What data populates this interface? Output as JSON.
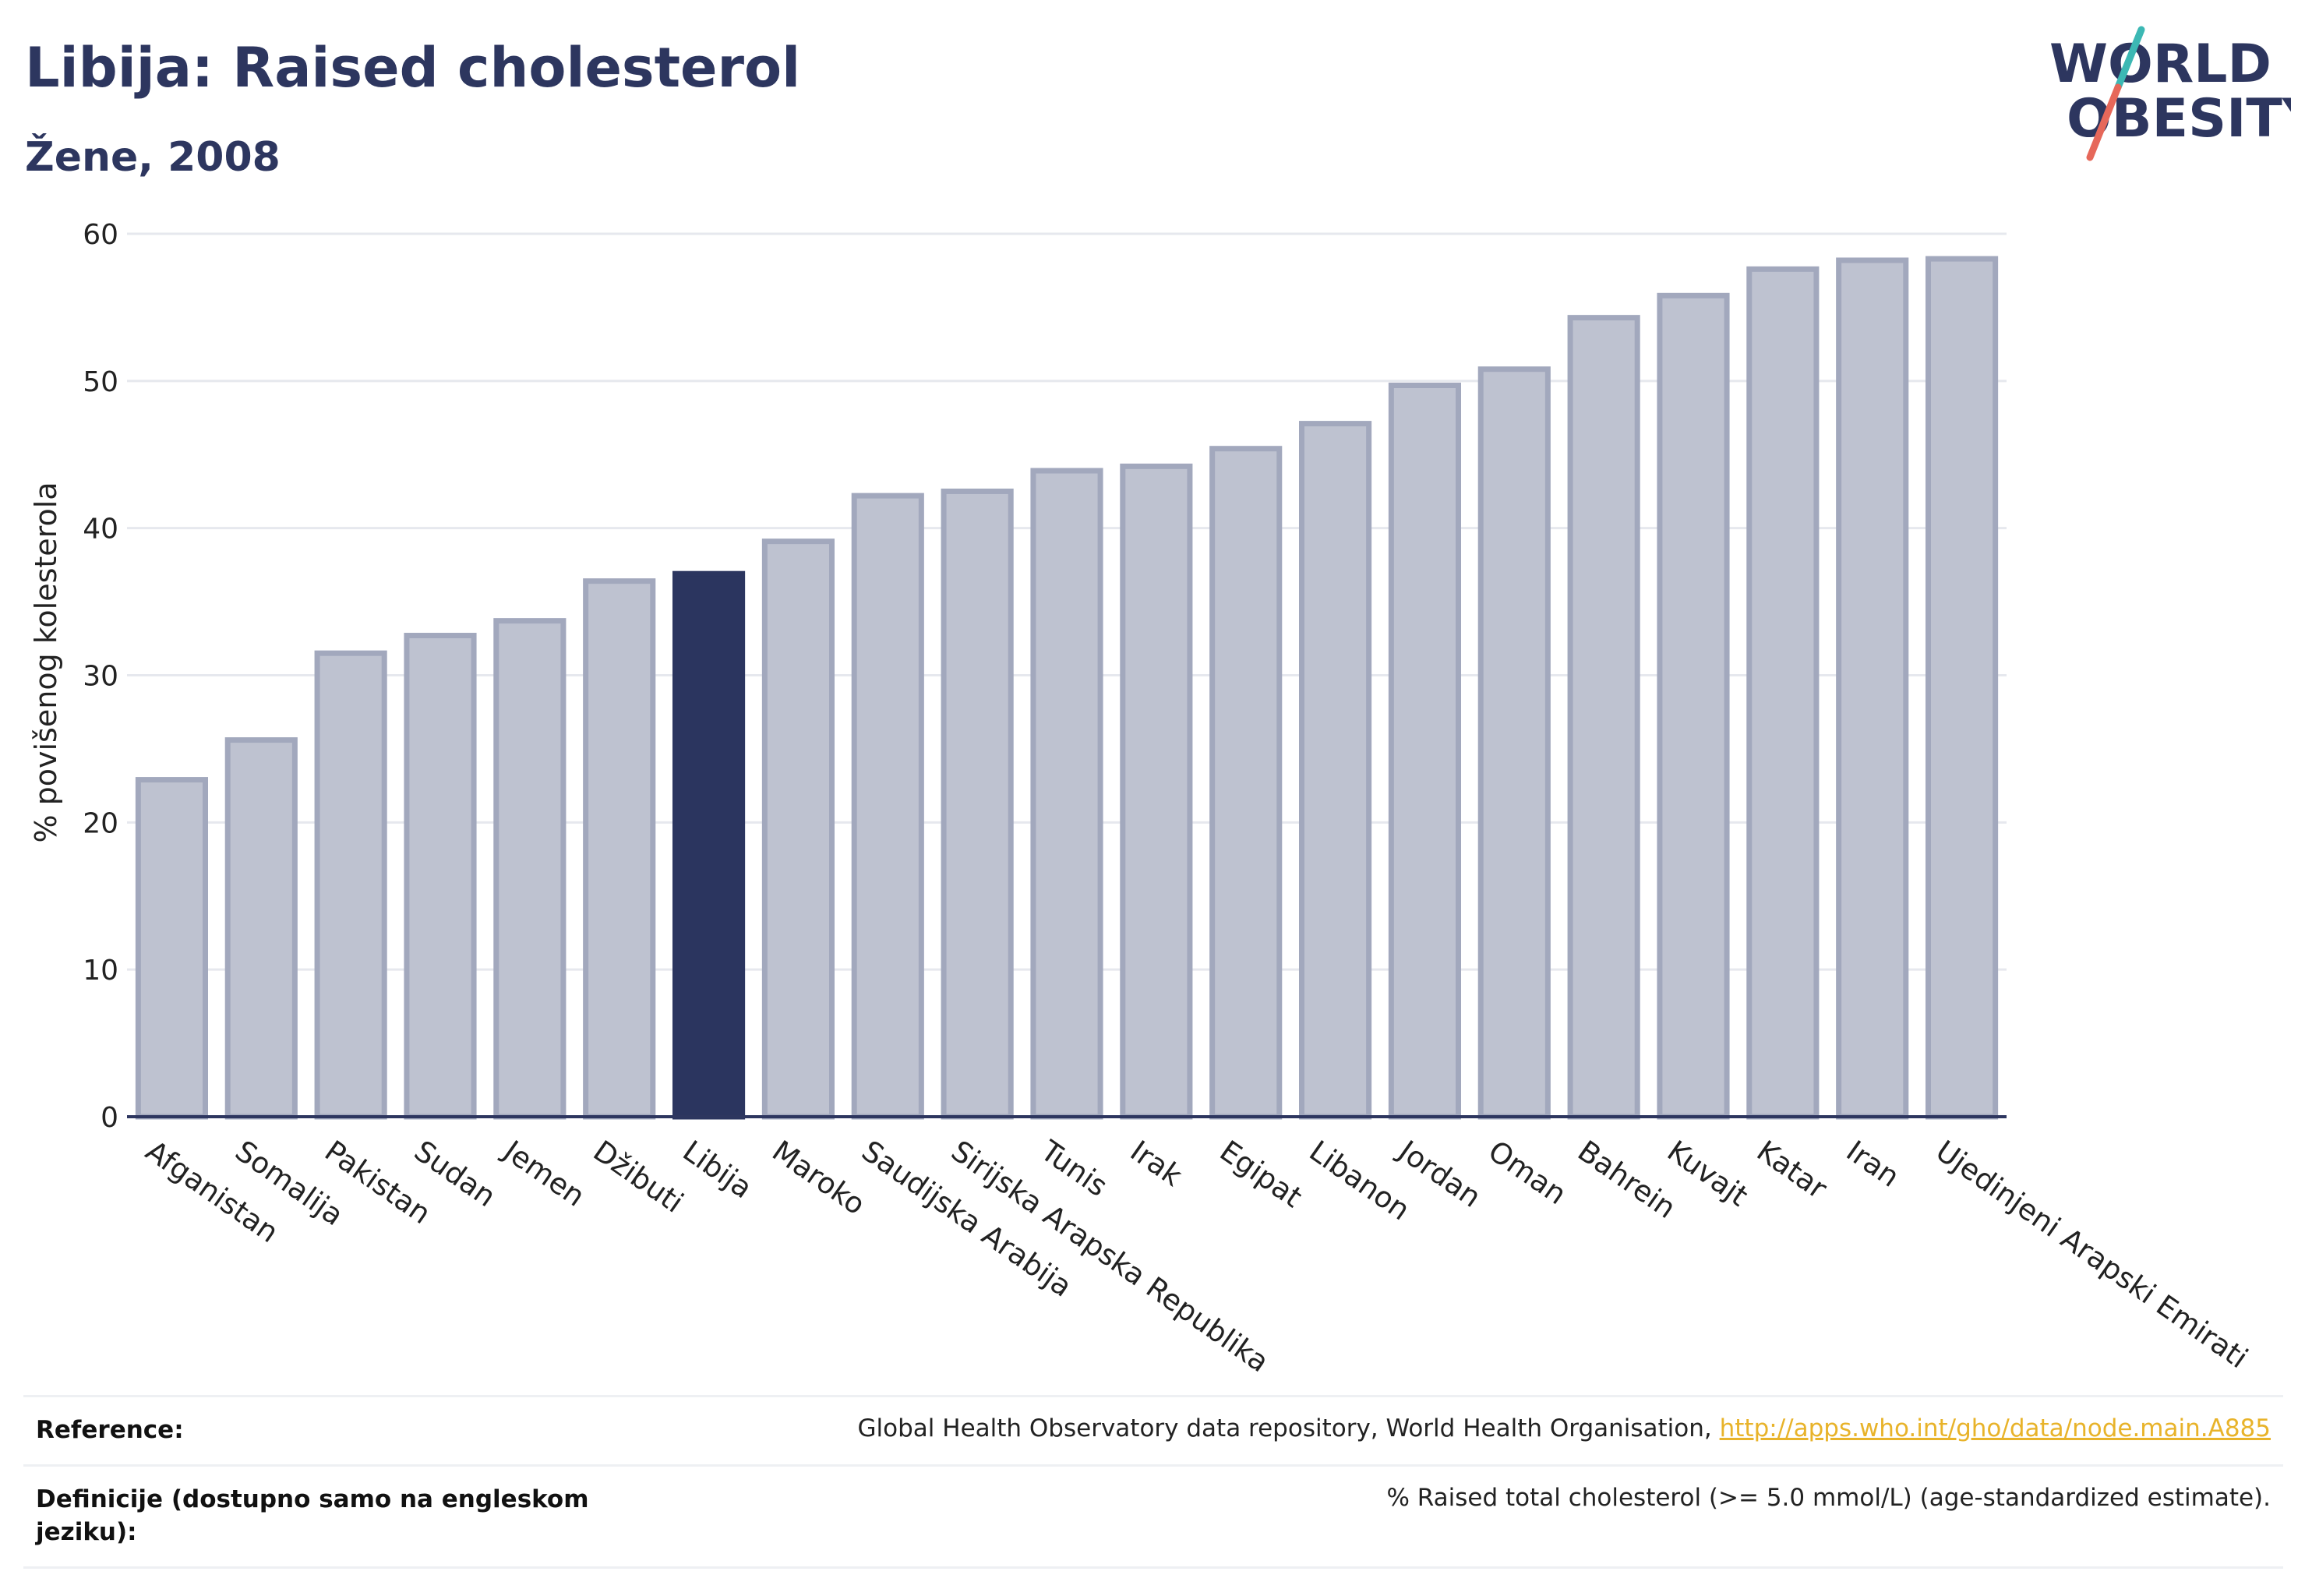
{
  "header": {
    "title": "Libija: Raised cholesterol",
    "subtitle": "Žene, 2008"
  },
  "logo": {
    "line1": "WORLD",
    "line2": "OBESITY",
    "icon": "world-obesity-logo"
  },
  "colors": {
    "highlight": "#2b355f",
    "bar": "#bec2d0",
    "bar_border": "#a2a8bd",
    "text": "#2d365f",
    "link": "#e8b32a"
  },
  "chart_data": {
    "type": "bar",
    "ylabel": "% povišenog kolesterola",
    "xlabel": "",
    "ylim": [
      0,
      60
    ],
    "yticks": [
      0,
      10,
      20,
      30,
      40,
      50,
      60
    ],
    "grid": true,
    "highlight": "Libija",
    "categories": [
      "Afganistan",
      "Somalija",
      "Pakistan",
      "Sudan",
      "Jemen",
      "Džibuti",
      "Libija",
      "Maroko",
      "Saudijska Arabija",
      "Sirijska Arapska Republika",
      "Tunis",
      "Irak",
      "Egipat",
      "Libanon",
      "Jordan",
      "Oman",
      "Bahrein",
      "Kuvajt",
      "Katar",
      "Iran",
      "Ujedinjeni Arapski Emirati"
    ],
    "values": [
      22.9,
      25.6,
      31.5,
      32.7,
      33.7,
      36.4,
      36.9,
      39.1,
      42.2,
      42.5,
      43.9,
      44.2,
      45.4,
      47.1,
      49.7,
      50.8,
      54.3,
      55.8,
      57.6,
      58.2,
      58.3
    ]
  },
  "footer": {
    "reference_label": "Reference:",
    "reference_text": "Global Health Observatory data repository, World Health Organisation, ",
    "reference_link": "http://apps.who.int/gho/data/node.main.A885",
    "definition_label": "Definicije (dostupno samo na engleskom jeziku):",
    "definition_text": "% Raised total cholesterol (>= 5.0 mmol/L) (age-standardized estimate)."
  }
}
